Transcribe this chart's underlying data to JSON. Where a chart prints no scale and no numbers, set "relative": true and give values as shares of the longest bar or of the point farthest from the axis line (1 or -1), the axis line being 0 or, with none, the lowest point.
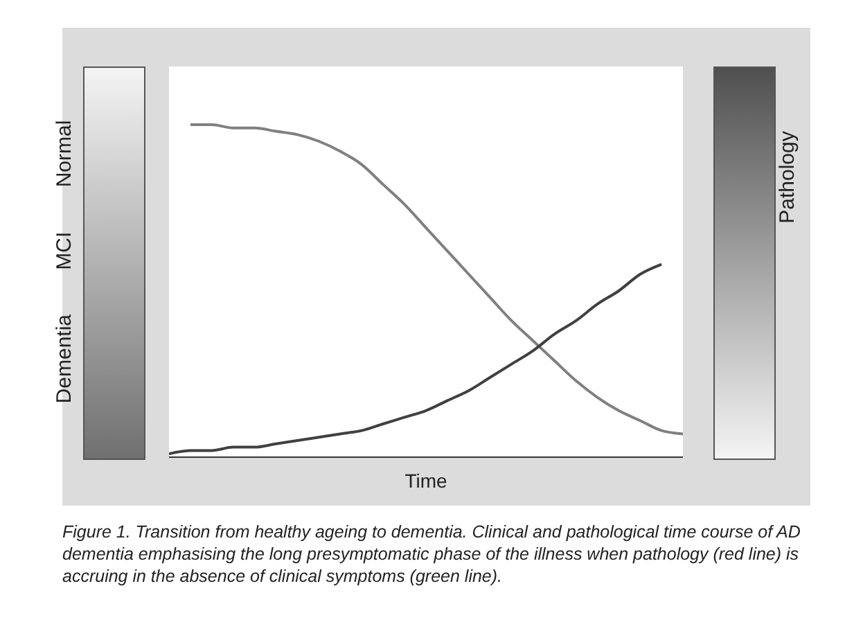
{
  "chart_data": {
    "type": "line",
    "relative": true,
    "xlabel": "Time",
    "ylabel": "Dementia MCI Normal",
    "y2label": "Pathology",
    "categories": [
      null,
      null,
      null,
      null,
      null,
      null,
      null,
      null,
      null,
      null,
      null,
      null,
      null,
      null,
      null,
      null,
      null,
      null,
      null,
      null,
      null,
      null,
      null,
      null,
      null
    ],
    "series": [
      {
        "color": "#808080",
        "values": [
          null,
          1,
          1,
          0.99,
          0.99,
          0.98,
          0.97,
          0.95,
          0.92,
          0.88,
          0.82,
          0.76,
          0.69,
          0.62,
          0.55,
          0.48,
          0.41,
          0.35,
          0.29,
          0.23,
          0.18,
          0.14,
          0.11,
          0.08,
          0.07
        ]
      },
      {
        "color": "#404040",
        "values": [
          0.01,
          0.02,
          0.02,
          0.03,
          0.03,
          0.04,
          0.05,
          0.06,
          0.07,
          0.08,
          0.1,
          0.12,
          0.14,
          0.17,
          0.2,
          0.24,
          0.28,
          0.32,
          0.37,
          0.41,
          0.46,
          0.5,
          0.55,
          0.58,
          null
        ]
      }
    ],
    "legend": false,
    "marker": "none",
    "line_style": "solid",
    "grid": false,
    "annotations": [
      "Figure 1. Transition from healthy ageing to dementia. Clinical and pathological time course of AD dementia emphasising the long presymptomatic phase of the illness when pathology (red line) is accruing in the absence of clinical symptoms (green line)."
    ]
  }
}
